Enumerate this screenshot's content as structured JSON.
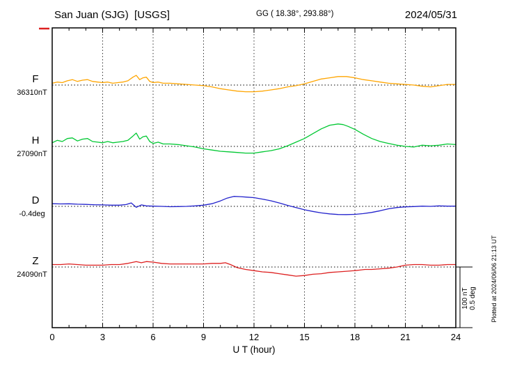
{
  "chart_data": {
    "type": "line",
    "title": "San Juan (SJG)  [USGS]",
    "subtitle": "GG ( 18.38°, 293.88°)",
    "date": "2024/05/31",
    "xlabel": "U T (hour)",
    "xlim": [
      0,
      24
    ],
    "x_ticks": [
      "0",
      "3",
      "6",
      "9",
      "12",
      "15",
      "18",
      "21",
      "24"
    ],
    "grid": "dotted vertical gridlines every 3 hours; dotted horizontal baseline for each trace",
    "legend_position": "left",
    "plotted_at": "Plotted at 2024/06/06 21:13 UT",
    "scale_bar": {
      "label_nT": "100 nT",
      "label_deg": "0.5 deg",
      "nT": 100,
      "deg": 0.5
    },
    "points_format": "[UT hour, offset from baseline_value in series unit]",
    "series": [
      {
        "name": "F",
        "unit": "nT",
        "baseline_label": "36310nT",
        "baseline_value": 36310,
        "color": "#ffa500",
        "points": [
          [
            0,
            3
          ],
          [
            0.3,
            5
          ],
          [
            0.6,
            4
          ],
          [
            0.9,
            7
          ],
          [
            1.2,
            9
          ],
          [
            1.5,
            6
          ],
          [
            1.8,
            8
          ],
          [
            2.1,
            9
          ],
          [
            2.4,
            6
          ],
          [
            2.7,
            5
          ],
          [
            3,
            4
          ],
          [
            3.3,
            5
          ],
          [
            3.6,
            3
          ],
          [
            3.9,
            4
          ],
          [
            4.2,
            5
          ],
          [
            4.5,
            7
          ],
          [
            4.8,
            13
          ],
          [
            5,
            16
          ],
          [
            5.2,
            9
          ],
          [
            5.4,
            12
          ],
          [
            5.6,
            13
          ],
          [
            5.8,
            6
          ],
          [
            6,
            4
          ],
          [
            6.3,
            5
          ],
          [
            6.6,
            3
          ],
          [
            7,
            3
          ],
          [
            7.5,
            2
          ],
          [
            8,
            1
          ],
          [
            8.5,
            0
          ],
          [
            9,
            -1
          ],
          [
            9.5,
            -3
          ],
          [
            10,
            -6
          ],
          [
            10.5,
            -8
          ],
          [
            11,
            -10
          ],
          [
            11.5,
            -11
          ],
          [
            12,
            -11
          ],
          [
            12.5,
            -10
          ],
          [
            13,
            -8
          ],
          [
            13.5,
            -6
          ],
          [
            14,
            -3
          ],
          [
            14.5,
            -1
          ],
          [
            15,
            2
          ],
          [
            15.5,
            6
          ],
          [
            16,
            10
          ],
          [
            16.5,
            12
          ],
          [
            17,
            14
          ],
          [
            17.5,
            14
          ],
          [
            18,
            12
          ],
          [
            18.5,
            9
          ],
          [
            19,
            7
          ],
          [
            19.5,
            5
          ],
          [
            20,
            3
          ],
          [
            20.5,
            2
          ],
          [
            21,
            1
          ],
          [
            21.5,
            0
          ],
          [
            22,
            -2
          ],
          [
            22.5,
            -3
          ],
          [
            23,
            -1
          ],
          [
            23.5,
            1
          ],
          [
            24,
            1
          ]
        ]
      },
      {
        "name": "H",
        "unit": "nT",
        "baseline_label": "27090nT",
        "baseline_value": 27090,
        "color": "#00c832",
        "points": [
          [
            0,
            6
          ],
          [
            0.3,
            10
          ],
          [
            0.6,
            8
          ],
          [
            0.9,
            13
          ],
          [
            1.2,
            14
          ],
          [
            1.5,
            9
          ],
          [
            1.8,
            12
          ],
          [
            2.1,
            13
          ],
          [
            2.4,
            8
          ],
          [
            2.7,
            7
          ],
          [
            3,
            6
          ],
          [
            3.3,
            8
          ],
          [
            3.6,
            6
          ],
          [
            3.9,
            7
          ],
          [
            4.2,
            8
          ],
          [
            4.5,
            10
          ],
          [
            4.8,
            17
          ],
          [
            5,
            22
          ],
          [
            5.2,
            12
          ],
          [
            5.4,
            16
          ],
          [
            5.6,
            17
          ],
          [
            5.8,
            8
          ],
          [
            6,
            5
          ],
          [
            6.3,
            7
          ],
          [
            6.6,
            4
          ],
          [
            7,
            4
          ],
          [
            7.5,
            3
          ],
          [
            8,
            1
          ],
          [
            8.5,
            -1
          ],
          [
            9,
            -4
          ],
          [
            9.5,
            -6
          ],
          [
            10,
            -8
          ],
          [
            10.5,
            -9
          ],
          [
            11,
            -10
          ],
          [
            11.5,
            -11
          ],
          [
            12,
            -11
          ],
          [
            12.5,
            -9
          ],
          [
            13,
            -7
          ],
          [
            13.5,
            -4
          ],
          [
            14,
            1
          ],
          [
            14.5,
            7
          ],
          [
            15,
            13
          ],
          [
            15.5,
            21
          ],
          [
            16,
            29
          ],
          [
            16.5,
            35
          ],
          [
            17,
            37
          ],
          [
            17.3,
            36
          ],
          [
            17.6,
            33
          ],
          [
            18,
            28
          ],
          [
            18.5,
            20
          ],
          [
            19,
            13
          ],
          [
            19.5,
            8
          ],
          [
            20,
            5
          ],
          [
            20.5,
            2
          ],
          [
            21,
            0
          ],
          [
            21.5,
            -1
          ],
          [
            22,
            2
          ],
          [
            22.5,
            1
          ],
          [
            23,
            2
          ],
          [
            23.5,
            4
          ],
          [
            24,
            3
          ]
        ]
      },
      {
        "name": "D",
        "unit": "deg",
        "baseline_label": "-0.4deg",
        "baseline_value": -0.4,
        "color": "#2222cc",
        "points": [
          [
            0,
            0.022
          ],
          [
            0.5,
            0.02
          ],
          [
            1,
            0.021
          ],
          [
            1.5,
            0.018
          ],
          [
            2,
            0.016
          ],
          [
            2.5,
            0.013
          ],
          [
            3,
            0.012
          ],
          [
            3.5,
            0.01
          ],
          [
            4,
            0.01
          ],
          [
            4.4,
            0.015
          ],
          [
            4.7,
            0.028
          ],
          [
            5,
            -0.008
          ],
          [
            5.3,
            0.012
          ],
          [
            5.6,
            0.004
          ],
          [
            6,
            0.002
          ],
          [
            6.5,
            0
          ],
          [
            7,
            -0.003
          ],
          [
            7.5,
            -0.002
          ],
          [
            8,
            0
          ],
          [
            8.5,
            0.004
          ],
          [
            9,
            0.01
          ],
          [
            9.5,
            0.022
          ],
          [
            10,
            0.045
          ],
          [
            10.4,
            0.068
          ],
          [
            10.8,
            0.082
          ],
          [
            11.2,
            0.08
          ],
          [
            11.6,
            0.076
          ],
          [
            12,
            0.072
          ],
          [
            12.5,
            0.06
          ],
          [
            13,
            0.046
          ],
          [
            13.5,
            0.028
          ],
          [
            14,
            0.008
          ],
          [
            14.5,
            -0.01
          ],
          [
            15,
            -0.028
          ],
          [
            15.5,
            -0.042
          ],
          [
            16,
            -0.054
          ],
          [
            16.5,
            -0.062
          ],
          [
            17,
            -0.067
          ],
          [
            17.5,
            -0.068
          ],
          [
            18,
            -0.066
          ],
          [
            18.5,
            -0.06
          ],
          [
            19,
            -0.05
          ],
          [
            19.5,
            -0.036
          ],
          [
            20,
            -0.02
          ],
          [
            20.5,
            -0.01
          ],
          [
            21,
            -0.004
          ],
          [
            21.5,
            -0.002
          ],
          [
            22,
            0.002
          ],
          [
            22.5,
            0
          ],
          [
            23,
            0.004
          ],
          [
            23.5,
            0.002
          ],
          [
            24,
            0.002
          ]
        ]
      },
      {
        "name": "Z",
        "unit": "nT",
        "baseline_label": "24090nT",
        "baseline_value": 24090,
        "color": "#dd2020",
        "points": [
          [
            0,
            4
          ],
          [
            0.5,
            4
          ],
          [
            1,
            5
          ],
          [
            1.5,
            4
          ],
          [
            2,
            3
          ],
          [
            2.5,
            3
          ],
          [
            3,
            3
          ],
          [
            3.5,
            4
          ],
          [
            4,
            4
          ],
          [
            4.5,
            6
          ],
          [
            5,
            9
          ],
          [
            5.3,
            7
          ],
          [
            5.6,
            9
          ],
          [
            6,
            8
          ],
          [
            6.5,
            6
          ],
          [
            7,
            5
          ],
          [
            7.5,
            5
          ],
          [
            8,
            5
          ],
          [
            8.5,
            5
          ],
          [
            9,
            5
          ],
          [
            9.5,
            6
          ],
          [
            10,
            6
          ],
          [
            10.3,
            7
          ],
          [
            10.6,
            4
          ],
          [
            11,
            -1
          ],
          [
            11.5,
            -4
          ],
          [
            12,
            -6
          ],
          [
            12.5,
            -8
          ],
          [
            13,
            -9
          ],
          [
            13.5,
            -11
          ],
          [
            14,
            -13
          ],
          [
            14.5,
            -15
          ],
          [
            15,
            -14
          ],
          [
            15.5,
            -12
          ],
          [
            16,
            -11
          ],
          [
            16.5,
            -9
          ],
          [
            17,
            -8
          ],
          [
            17.5,
            -7
          ],
          [
            18,
            -6
          ],
          [
            18.3,
            -5
          ],
          [
            18.6,
            -4
          ],
          [
            19,
            -4
          ],
          [
            19.5,
            -3
          ],
          [
            20,
            -2
          ],
          [
            20.5,
            0
          ],
          [
            21,
            3
          ],
          [
            21.5,
            4
          ],
          [
            22,
            4
          ],
          [
            22.5,
            3
          ],
          [
            23,
            3
          ],
          [
            23.5,
            4
          ],
          [
            24,
            4
          ]
        ]
      }
    ]
  }
}
